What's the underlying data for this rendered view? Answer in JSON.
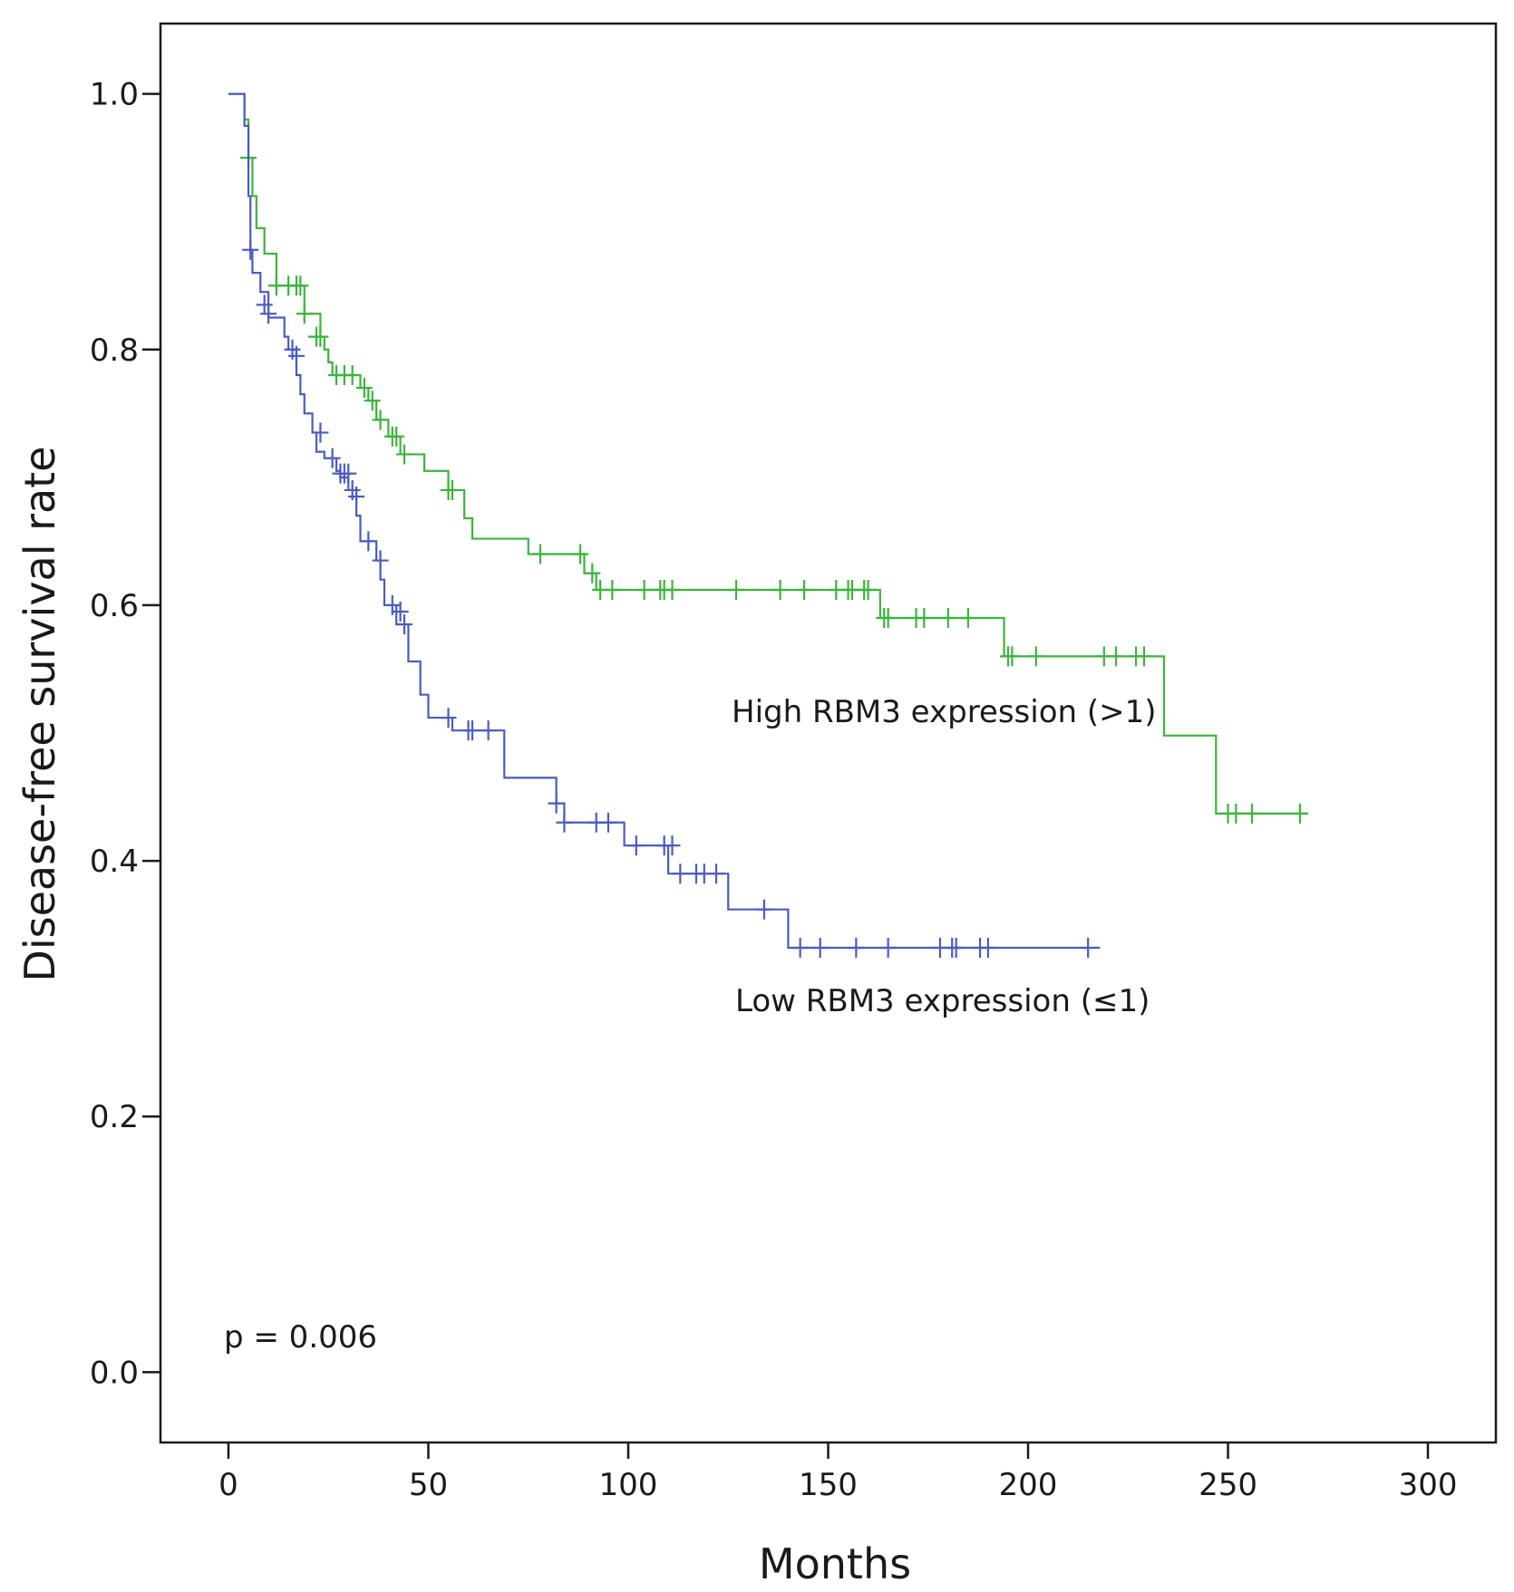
{
  "chart_data": {
    "type": "line",
    "subtype": "kaplan-meier",
    "xlabel": "Months",
    "ylabel": "Disease-free survival rate",
    "xlim": [
      -17,
      317
    ],
    "ylim": [
      -0.055,
      1.055
    ],
    "xticks": [
      0,
      50,
      100,
      150,
      200,
      250,
      300
    ],
    "yticks": [
      0.0,
      0.2,
      0.4,
      0.6,
      0.8,
      1.0
    ],
    "ytick_labels": [
      "0.0",
      "0.2",
      "0.4",
      "0.6",
      "0.8",
      "1.0"
    ],
    "grid": false,
    "annotations": {
      "p_value": "p = 0.006",
      "high_label": "High RBM3 expression (>1)",
      "low_label": "Low RBM3 expression (≤1)"
    },
    "series": [
      {
        "name": "High RBM3 expression (>1)",
        "color": "#3cb43c",
        "steps": [
          [
            0,
            1.0
          ],
          [
            4,
            0.98
          ],
          [
            5,
            0.95
          ],
          [
            6,
            0.92
          ],
          [
            7,
            0.895
          ],
          [
            9,
            0.875
          ],
          [
            12,
            0.85
          ],
          [
            19,
            0.828
          ],
          [
            23,
            0.81
          ],
          [
            24,
            0.8
          ],
          [
            25,
            0.79
          ],
          [
            26,
            0.78
          ],
          [
            33,
            0.77
          ],
          [
            35,
            0.76
          ],
          [
            37,
            0.745
          ],
          [
            40,
            0.732
          ],
          [
            43,
            0.718
          ],
          [
            49,
            0.705
          ],
          [
            55,
            0.69
          ],
          [
            59,
            0.668
          ],
          [
            61,
            0.652
          ],
          [
            75,
            0.64
          ],
          [
            89,
            0.625
          ],
          [
            92,
            0.612
          ],
          [
            163,
            0.59
          ],
          [
            194,
            0.56
          ],
          [
            234,
            0.498
          ],
          [
            247,
            0.437
          ],
          [
            270,
            0.437
          ]
        ],
        "censored": [
          [
            5,
            0.95
          ],
          [
            12,
            0.85
          ],
          [
            15,
            0.85
          ],
          [
            17,
            0.85
          ],
          [
            18,
            0.85
          ],
          [
            19,
            0.828
          ],
          [
            22,
            0.81
          ],
          [
            23,
            0.81
          ],
          [
            27,
            0.78
          ],
          [
            29,
            0.78
          ],
          [
            31,
            0.78
          ],
          [
            34,
            0.77
          ],
          [
            36,
            0.76
          ],
          [
            38,
            0.745
          ],
          [
            41,
            0.732
          ],
          [
            42,
            0.732
          ],
          [
            44,
            0.718
          ],
          [
            55,
            0.69
          ],
          [
            56,
            0.69
          ],
          [
            78,
            0.64
          ],
          [
            88,
            0.64
          ],
          [
            91,
            0.625
          ],
          [
            93,
            0.612
          ],
          [
            96,
            0.612
          ],
          [
            104,
            0.612
          ],
          [
            108,
            0.612
          ],
          [
            109,
            0.612
          ],
          [
            111,
            0.612
          ],
          [
            127,
            0.612
          ],
          [
            138,
            0.612
          ],
          [
            144,
            0.612
          ],
          [
            152,
            0.612
          ],
          [
            155,
            0.612
          ],
          [
            156,
            0.612
          ],
          [
            159,
            0.612
          ],
          [
            160,
            0.612
          ],
          [
            164,
            0.59
          ],
          [
            165,
            0.59
          ],
          [
            172,
            0.59
          ],
          [
            174,
            0.59
          ],
          [
            180,
            0.59
          ],
          [
            185,
            0.59
          ],
          [
            195,
            0.56
          ],
          [
            196,
            0.56
          ],
          [
            202,
            0.56
          ],
          [
            219,
            0.56
          ],
          [
            222,
            0.56
          ],
          [
            227,
            0.56
          ],
          [
            229,
            0.56
          ],
          [
            250,
            0.437
          ],
          [
            252,
            0.437
          ],
          [
            256,
            0.437
          ],
          [
            268,
            0.437
          ]
        ]
      },
      {
        "name": "Low RBM3 expression (≤1)",
        "color": "#4a5cc0",
        "steps": [
          [
            0,
            1.0
          ],
          [
            4,
            0.975
          ],
          [
            5,
            0.92
          ],
          [
            5.5,
            0.878
          ],
          [
            6,
            0.86
          ],
          [
            8,
            0.845
          ],
          [
            10,
            0.825
          ],
          [
            14,
            0.81
          ],
          [
            15,
            0.8
          ],
          [
            17,
            0.78
          ],
          [
            18,
            0.765
          ],
          [
            19,
            0.75
          ],
          [
            21,
            0.735
          ],
          [
            22,
            0.72
          ],
          [
            24,
            0.715
          ],
          [
            27,
            0.705
          ],
          [
            28,
            0.7
          ],
          [
            30,
            0.69
          ],
          [
            32,
            0.67
          ],
          [
            33,
            0.65
          ],
          [
            37,
            0.635
          ],
          [
            38,
            0.62
          ],
          [
            39,
            0.6
          ],
          [
            42,
            0.585
          ],
          [
            45,
            0.556
          ],
          [
            48,
            0.53
          ],
          [
            50,
            0.512
          ],
          [
            56,
            0.502
          ],
          [
            69,
            0.465
          ],
          [
            82,
            0.445
          ],
          [
            84,
            0.43
          ],
          [
            99,
            0.412
          ],
          [
            110,
            0.39
          ],
          [
            125,
            0.362
          ],
          [
            140,
            0.332
          ],
          [
            218,
            0.332
          ]
        ],
        "censored": [
          [
            5.5,
            0.878
          ],
          [
            9,
            0.835
          ],
          [
            10,
            0.828
          ],
          [
            16,
            0.8
          ],
          [
            17,
            0.795
          ],
          [
            23,
            0.735
          ],
          [
            26,
            0.715
          ],
          [
            28,
            0.703
          ],
          [
            29,
            0.703
          ],
          [
            30,
            0.703
          ],
          [
            31,
            0.69
          ],
          [
            32,
            0.685
          ],
          [
            35,
            0.65
          ],
          [
            38,
            0.635
          ],
          [
            41,
            0.6
          ],
          [
            43,
            0.595
          ],
          [
            44,
            0.585
          ],
          [
            55,
            0.512
          ],
          [
            60,
            0.502
          ],
          [
            61,
            0.502
          ],
          [
            65,
            0.502
          ],
          [
            82,
            0.445
          ],
          [
            84,
            0.43
          ],
          [
            92,
            0.43
          ],
          [
            95,
            0.43
          ],
          [
            102,
            0.412
          ],
          [
            109,
            0.412
          ],
          [
            111,
            0.412
          ],
          [
            113,
            0.39
          ],
          [
            117,
            0.39
          ],
          [
            119,
            0.39
          ],
          [
            122,
            0.39
          ],
          [
            134,
            0.362
          ],
          [
            143,
            0.332
          ],
          [
            148,
            0.332
          ],
          [
            157,
            0.332
          ],
          [
            165,
            0.332
          ],
          [
            178,
            0.332
          ],
          [
            181,
            0.332
          ],
          [
            182,
            0.332
          ],
          [
            188,
            0.332
          ],
          [
            190,
            0.332
          ],
          [
            215,
            0.332
          ]
        ]
      }
    ]
  }
}
